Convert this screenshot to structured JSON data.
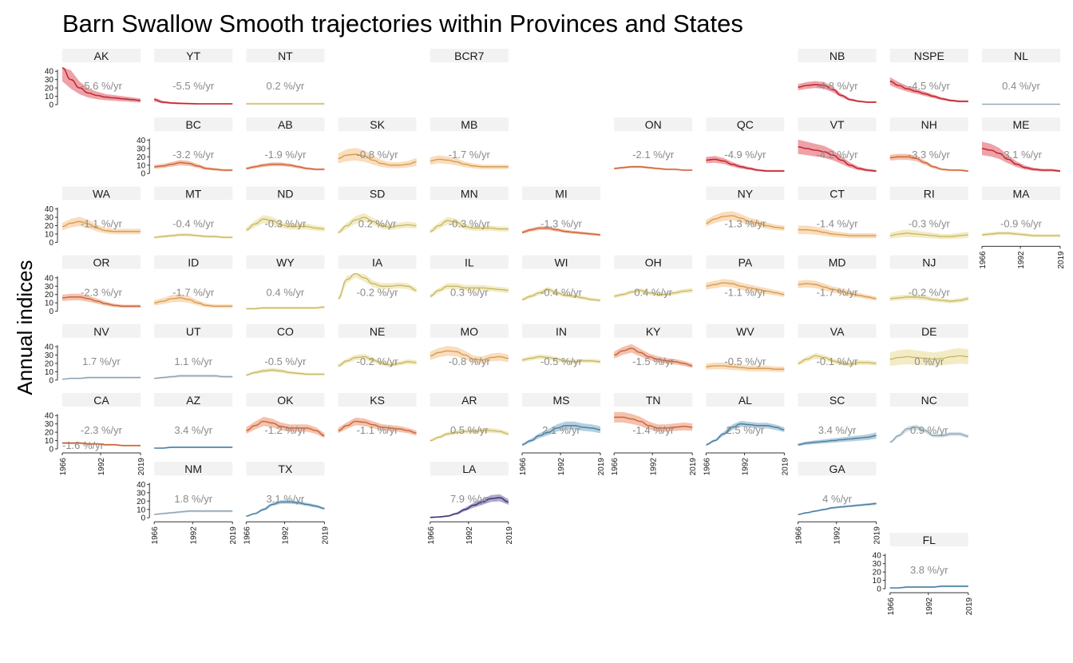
{
  "chart_data": {
    "type": "line",
    "title": "Barn Swallow Smooth trajectories within Provinces and States",
    "ylabel": "Annual indices",
    "xlabel": "",
    "x_range": [
      1966,
      2019
    ],
    "ylim": [
      0,
      45
    ],
    "x_ticks": [
      1966,
      1992,
      2019
    ],
    "y_ticks": [
      0,
      10,
      20,
      30,
      40
    ],
    "grid": false,
    "colors": {
      "strong_decline": "#d7303c",
      "moderate_decline": "#e4784a",
      "weak_decline": "#f2b46a",
      "stable": "#e2d37e",
      "weak_increase": "#a9bfcd",
      "moderate_increase": "#5b94b8",
      "strong_increase": "#4a3f8c",
      "trend_text": "#8a8a8a",
      "strip": "#f2f2f2",
      "axis": "#333333"
    },
    "panels": [
      {
        "label": "AK",
        "trend": "-5.6 %/yr",
        "cat": "strong_decline",
        "y": [
          44,
          30,
          20,
          14,
          11,
          9,
          8,
          7,
          6,
          5
        ],
        "band": 0.35,
        "yaxis": true
      },
      {
        "label": "YT",
        "trend": "-5.5 %/yr",
        "cat": "strong_decline",
        "y": [
          6,
          3,
          2,
          1.5,
          1.2,
          1,
          1,
          1,
          1,
          1
        ],
        "band": 0.3
      },
      {
        "label": "NT",
        "trend": "0.2 %/yr",
        "cat": "stable",
        "y": [
          1,
          1,
          1,
          1,
          1,
          1,
          1,
          1,
          1,
          1
        ],
        "band": 0.8
      },
      {
        "label": "BCR7",
        "trend": "",
        "cat": "none",
        "y": []
      },
      {
        "label": "NB",
        "trend": "-4.8 %/yr",
        "cat": "strong_decline",
        "y": [
          21,
          23,
          24,
          23,
          18,
          11,
          6,
          4,
          3,
          3
        ],
        "band": 0.15
      },
      {
        "label": "NSPE",
        "trend": "-4.5 %/yr",
        "cat": "strong_decline",
        "y": [
          28,
          23,
          19,
          16,
          13,
          10,
          7,
          5,
          4,
          4
        ],
        "band": 0.15
      },
      {
        "label": "NL",
        "trend": "0.4 %/yr",
        "cat": "weak_increase",
        "y": [
          0.5,
          0.5,
          0.5,
          0.5,
          0.5,
          0.5,
          0.5,
          0.5,
          0.5,
          0.5
        ],
        "band": 0.5
      },
      {
        "label": "BC",
        "trend": "-3.2 %/yr",
        "cat": "moderate_decline",
        "y": [
          8,
          9,
          11,
          13,
          12,
          9,
          6,
          5,
          4,
          4
        ],
        "band": 0.2,
        "yaxis": true
      },
      {
        "label": "AB",
        "trend": "-1.9 %/yr",
        "cat": "moderate_decline",
        "y": [
          6,
          8,
          10,
          11,
          11,
          10,
          8,
          6,
          5,
          5
        ],
        "band": 0.15
      },
      {
        "label": "SK",
        "trend": "-0.8 %/yr",
        "cat": "weak_decline",
        "y": [
          18,
          22,
          23,
          21,
          16,
          12,
          10,
          10,
          11,
          14
        ],
        "band": 0.3
      },
      {
        "label": "MB",
        "trend": "-1.7 %/yr",
        "cat": "weak_decline",
        "y": [
          15,
          17,
          16,
          14,
          11,
          9,
          8,
          8,
          8,
          8
        ],
        "band": 0.25
      },
      {
        "label": "ON",
        "trend": "-2.1 %/yr",
        "cat": "moderate_decline",
        "y": [
          6,
          7,
          8,
          8,
          7,
          6,
          5,
          5,
          4,
          4
        ],
        "band": 0.1
      },
      {
        "label": "QC",
        "trend": "-4.9 %/yr",
        "cat": "strong_decline",
        "y": [
          16,
          17,
          15,
          11,
          8,
          6,
          4,
          3,
          3,
          3
        ],
        "band": 0.2
      },
      {
        "label": "VT",
        "trend": "-4.2 %/yr",
        "cat": "strong_decline",
        "y": [
          32,
          30,
          28,
          26,
          22,
          16,
          10,
          6,
          4,
          3
        ],
        "band": 0.25
      },
      {
        "label": "NH",
        "trend": "-3.3 %/yr",
        "cat": "moderate_decline",
        "y": [
          19,
          20,
          20,
          18,
          13,
          8,
          5,
          4,
          4,
          3
        ],
        "band": 0.15
      },
      {
        "label": "ME",
        "trend": "-3.1 %/yr",
        "cat": "strong_decline",
        "y": [
          30,
          28,
          24,
          17,
          11,
          7,
          5,
          4,
          4,
          3
        ],
        "band": 0.25
      },
      {
        "label": "WA",
        "trend": "-1.1 %/yr",
        "cat": "weak_decline",
        "y": [
          19,
          23,
          25,
          22,
          17,
          14,
          13,
          13,
          13,
          13
        ],
        "band": 0.2,
        "yaxis": true
      },
      {
        "label": "MT",
        "trend": "-0.4 %/yr",
        "cat": "stable",
        "y": [
          6,
          7,
          8,
          9,
          9,
          8,
          7,
          7,
          6,
          6
        ],
        "band": 0.15
      },
      {
        "label": "ND",
        "trend": "-0.3 %/yr",
        "cat": "stable",
        "y": [
          15,
          22,
          28,
          26,
          21,
          19,
          19,
          19,
          17,
          16
        ],
        "band": 0.15
      },
      {
        "label": "SD",
        "trend": "0.2 %/yr",
        "cat": "stable",
        "y": [
          12,
          20,
          27,
          30,
          25,
          20,
          18,
          20,
          21,
          20
        ],
        "band": 0.15
      },
      {
        "label": "MN",
        "trend": "-0.3 %/yr",
        "cat": "stable",
        "y": [
          13,
          20,
          26,
          24,
          19,
          17,
          17,
          17,
          16,
          16
        ],
        "band": 0.15
      },
      {
        "label": "MI",
        "trend": "-1.3 %/yr",
        "cat": "moderate_decline",
        "y": [
          12,
          15,
          17,
          17,
          15,
          13,
          12,
          11,
          10,
          9
        ],
        "band": 0.1
      },
      {
        "label": "NY",
        "trend": "-1.3 %/yr",
        "cat": "weak_decline",
        "y": [
          23,
          28,
          31,
          32,
          29,
          25,
          23,
          20,
          18,
          17
        ],
        "band": 0.15
      },
      {
        "label": "CT",
        "trend": "-1.4 %/yr",
        "cat": "weak_decline",
        "y": [
          15,
          15,
          14,
          12,
          10,
          9,
          8,
          8,
          8,
          8
        ],
        "band": 0.3
      },
      {
        "label": "RI",
        "trend": "-0.3 %/yr",
        "cat": "stable",
        "y": [
          8,
          10,
          11,
          10,
          9,
          8,
          7,
          7,
          8,
          9
        ],
        "band": 0.35
      },
      {
        "label": "MA",
        "trend": "-0.9 %/yr",
        "cat": "stable",
        "y": [
          9,
          10,
          11,
          11,
          10,
          9,
          8,
          8,
          8,
          8
        ],
        "band": 0.15,
        "xaxis": true
      },
      {
        "label": "OR",
        "trend": "-2.3 %/yr",
        "cat": "moderate_decline",
        "y": [
          16,
          17,
          17,
          15,
          12,
          9,
          7,
          6,
          6,
          6
        ],
        "band": 0.2,
        "yaxis": true
      },
      {
        "label": "ID",
        "trend": "-1.7 %/yr",
        "cat": "weak_decline",
        "y": [
          10,
          12,
          15,
          16,
          14,
          10,
          7,
          6,
          6,
          6
        ],
        "band": 0.25
      },
      {
        "label": "WY",
        "trend": "0.4 %/yr",
        "cat": "stable",
        "y": [
          3,
          3,
          4,
          4,
          4,
          4,
          4,
          4,
          4,
          5
        ],
        "band": 0.2
      },
      {
        "label": "IA",
        "trend": "-0.2 %/yr",
        "cat": "stable",
        "y": [
          15,
          38,
          46,
          40,
          33,
          30,
          30,
          31,
          30,
          25
        ],
        "band": 0.1
      },
      {
        "label": "IL",
        "trend": "0.3 %/yr",
        "cat": "stable",
        "y": [
          18,
          25,
          30,
          30,
          28,
          28,
          28,
          27,
          26,
          25
        ],
        "band": 0.1
      },
      {
        "label": "WI",
        "trend": "-0.4 %/yr",
        "cat": "stable",
        "y": [
          14,
          18,
          22,
          26,
          22,
          19,
          18,
          16,
          14,
          13
        ],
        "band": 0.1
      },
      {
        "label": "OH",
        "trend": "0.4 %/yr",
        "cat": "stable",
        "y": [
          18,
          20,
          23,
          25,
          22,
          20,
          20,
          22,
          24,
          25
        ],
        "band": 0.08
      },
      {
        "label": "PA",
        "trend": "-1.1 %/yr",
        "cat": "weak_decline",
        "y": [
          30,
          32,
          34,
          33,
          30,
          28,
          26,
          24,
          22,
          20
        ],
        "band": 0.12
      },
      {
        "label": "MD",
        "trend": "-1.7 %/yr",
        "cat": "weak_decline",
        "y": [
          32,
          33,
          32,
          29,
          26,
          24,
          21,
          19,
          17,
          15
        ],
        "band": 0.12
      },
      {
        "label": "NJ",
        "trend": "-0.2 %/yr",
        "cat": "stable",
        "y": [
          15,
          16,
          17,
          17,
          16,
          14,
          13,
          12,
          13,
          15
        ],
        "band": 0.15
      },
      {
        "label": "NV",
        "trend": "1.7 %/yr",
        "cat": "weak_increase",
        "y": [
          1,
          2,
          2,
          3,
          3,
          3,
          3,
          3,
          3,
          3
        ],
        "band": 0.2,
        "yaxis": true
      },
      {
        "label": "UT",
        "trend": "1.1 %/yr",
        "cat": "weak_increase",
        "y": [
          2,
          3,
          4,
          5,
          5,
          5,
          5,
          5,
          4,
          4
        ],
        "band": 0.2
      },
      {
        "label": "CO",
        "trend": "-0.5 %/yr",
        "cat": "stable",
        "y": [
          6,
          9,
          11,
          12,
          11,
          9,
          8,
          7,
          7,
          7
        ],
        "band": 0.15
      },
      {
        "label": "NE",
        "trend": "-0.2 %/yr",
        "cat": "stable",
        "y": [
          17,
          23,
          27,
          28,
          24,
          20,
          18,
          20,
          22,
          21
        ],
        "band": 0.1
      },
      {
        "label": "MO",
        "trend": "-0.8 %/yr",
        "cat": "weak_decline",
        "y": [
          29,
          33,
          35,
          34,
          30,
          25,
          24,
          27,
          28,
          26
        ],
        "band": 0.15
      },
      {
        "label": "IN",
        "trend": "-0.5 %/yr",
        "cat": "stable",
        "y": [
          24,
          26,
          28,
          27,
          25,
          23,
          22,
          23,
          23,
          22
        ],
        "band": 0.08
      },
      {
        "label": "KY",
        "trend": "-1.5 %/yr",
        "cat": "moderate_decline",
        "y": [
          30,
          35,
          38,
          33,
          28,
          25,
          23,
          22,
          20,
          17
        ],
        "band": 0.12
      },
      {
        "label": "WV",
        "trend": "-0.5 %/yr",
        "cat": "weak_decline",
        "y": [
          16,
          17,
          17,
          16,
          15,
          14,
          14,
          14,
          13,
          13
        ],
        "band": 0.2
      },
      {
        "label": "VA",
        "trend": "-0.1 %/yr",
        "cat": "stable",
        "y": [
          20,
          25,
          29,
          27,
          23,
          20,
          19,
          21,
          21,
          20
        ],
        "band": 0.1
      },
      {
        "label": "DE",
        "trend": "0 %/yr",
        "cat": "stable",
        "y": [
          25,
          27,
          28,
          27,
          26,
          25,
          26,
          28,
          29,
          28
        ],
        "band": 0.3
      },
      {
        "label": "CA",
        "trend": "-2.3 %/yr",
        "cat": "moderate_decline",
        "y": [
          7,
          7,
          7,
          6,
          6,
          5,
          5,
          4,
          4,
          4
        ],
        "band": 0.1,
        "yaxis": true,
        "xaxis": true,
        "extra_trend": "-1.6 %/yr"
      },
      {
        "label": "AZ",
        "trend": "3.4 %/yr",
        "cat": "moderate_increase",
        "y": [
          1,
          1,
          2,
          2,
          2,
          2,
          2,
          2,
          2,
          2
        ],
        "band": 0.2
      },
      {
        "label": "OK",
        "trend": "-1.2 %/yr",
        "cat": "moderate_decline",
        "y": [
          22,
          28,
          33,
          31,
          27,
          25,
          25,
          25,
          22,
          16
        ],
        "band": 0.15
      },
      {
        "label": "KS",
        "trend": "-1.1 %/yr",
        "cat": "moderate_decline",
        "y": [
          22,
          28,
          33,
          32,
          29,
          26,
          25,
          24,
          22,
          19
        ],
        "band": 0.12
      },
      {
        "label": "AR",
        "trend": "0.5 %/yr",
        "cat": "stable",
        "y": [
          10,
          14,
          18,
          20,
          21,
          21,
          22,
          22,
          21,
          18
        ],
        "band": 0.1
      },
      {
        "label": "MS",
        "trend": "2.1 %/yr",
        "cat": "moderate_increase",
        "y": [
          5,
          10,
          16,
          20,
          25,
          28,
          28,
          26,
          25,
          23
        ],
        "band": 0.15,
        "xaxis": true
      },
      {
        "label": "TN",
        "trend": "-1.4 %/yr",
        "cat": "moderate_decline",
        "y": [
          38,
          38,
          36,
          33,
          28,
          25,
          25,
          26,
          27,
          26
        ],
        "band": 0.15,
        "xaxis": true
      },
      {
        "label": "AL",
        "trend": "2.5 %/yr",
        "cat": "moderate_increase",
        "y": [
          5,
          10,
          18,
          26,
          30,
          29,
          28,
          28,
          26,
          23
        ],
        "band": 0.1,
        "xaxis": true
      },
      {
        "label": "SC",
        "trend": "3.4 %/yr",
        "cat": "moderate_increase",
        "y": [
          5,
          7,
          8,
          9,
          10,
          11,
          12,
          13,
          14,
          16
        ],
        "band": 0.2
      },
      {
        "label": "NC",
        "trend": "0.9 %/yr",
        "cat": "weak_increase",
        "y": [
          8,
          16,
          24,
          26,
          22,
          16,
          16,
          18,
          18,
          15
        ],
        "band": 0.1
      },
      {
        "label": "NM",
        "trend": "1.8 %/yr",
        "cat": "weak_increase",
        "y": [
          4,
          5,
          6,
          7,
          8,
          8,
          8,
          8,
          8,
          8
        ],
        "band": 0.1,
        "yaxis": true,
        "xaxis": true
      },
      {
        "label": "TX",
        "trend": "3.1 %/yr",
        "cat": "moderate_increase",
        "y": [
          2,
          5,
          10,
          16,
          19,
          19,
          18,
          16,
          14,
          11
        ],
        "band": 0.08,
        "xaxis": true
      },
      {
        "label": "LA",
        "trend": "7.9 %/yr",
        "cat": "strong_increase",
        "y": [
          0.5,
          1,
          2,
          5,
          10,
          15,
          19,
          23,
          24,
          19
        ],
        "band": 0.15,
        "xaxis": true
      },
      {
        "label": "GA",
        "trend": "4 %/yr",
        "cat": "moderate_increase",
        "y": [
          4,
          6,
          8,
          10,
          12,
          13,
          14,
          15,
          16,
          17
        ],
        "band": 0.05,
        "xaxis": true
      },
      {
        "label": "FL",
        "trend": "3.8 %/yr",
        "cat": "moderate_increase",
        "y": [
          1,
          1,
          2,
          2,
          2,
          2,
          3,
          3,
          3,
          3
        ],
        "band": 0.2,
        "yaxis": true,
        "xaxis": true
      }
    ]
  }
}
